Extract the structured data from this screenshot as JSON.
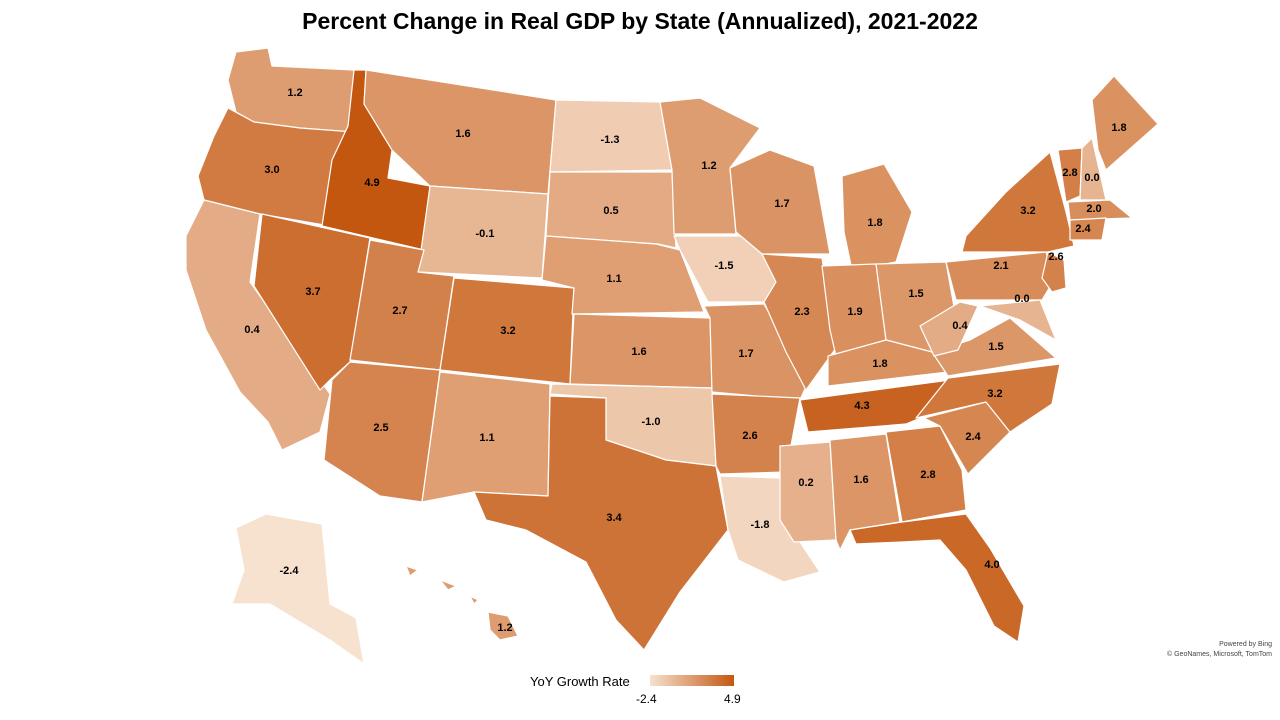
{
  "title": "Percent Change in Real GDP by State (Annualized), 2021-2022",
  "attribution": {
    "line1": "Powered by Bing",
    "line2": "© GeoNames, Microsoft, TomTom"
  },
  "legend": {
    "title": "YoY Growth Rate",
    "min_label": "-2.4",
    "max_label": "4.9",
    "min_color": "#f7e1cf",
    "max_color": "#c45710"
  },
  "map_data": {
    "value_range": [
      -2.4,
      4.9
    ],
    "states": [
      {
        "id": "WA",
        "value": "1.2"
      },
      {
        "id": "OR",
        "value": "3.0"
      },
      {
        "id": "CA",
        "value": "0.4"
      },
      {
        "id": "ID",
        "value": "4.9"
      },
      {
        "id": "NV",
        "value": "3.7"
      },
      {
        "id": "MT",
        "value": "1.6"
      },
      {
        "id": "WY",
        "value": "-0.1"
      },
      {
        "id": "UT",
        "value": "2.7"
      },
      {
        "id": "AZ",
        "value": "2.5"
      },
      {
        "id": "CO",
        "value": "3.2"
      },
      {
        "id": "NM",
        "value": "1.1"
      },
      {
        "id": "ND",
        "value": "-1.3"
      },
      {
        "id": "SD",
        "value": "0.5"
      },
      {
        "id": "NE",
        "value": "1.1"
      },
      {
        "id": "KS",
        "value": "1.6"
      },
      {
        "id": "OK",
        "value": "-1.0"
      },
      {
        "id": "TX",
        "value": "3.4"
      },
      {
        "id": "MN",
        "value": "1.2"
      },
      {
        "id": "IA",
        "value": "-1.5"
      },
      {
        "id": "MO",
        "value": "1.7"
      },
      {
        "id": "AR",
        "value": "2.6"
      },
      {
        "id": "LA",
        "value": "-1.8"
      },
      {
        "id": "WI",
        "value": "1.7"
      },
      {
        "id": "IL",
        "value": "2.3"
      },
      {
        "id": "MI",
        "value": "1.8"
      },
      {
        "id": "IN",
        "value": "1.9"
      },
      {
        "id": "OH",
        "value": "1.5"
      },
      {
        "id": "KY",
        "value": "1.8"
      },
      {
        "id": "TN",
        "value": "4.3"
      },
      {
        "id": "MS",
        "value": "0.2"
      },
      {
        "id": "AL",
        "value": "1.6"
      },
      {
        "id": "GA",
        "value": "2.8"
      },
      {
        "id": "FL",
        "value": "4.0"
      },
      {
        "id": "SC",
        "value": "2.4"
      },
      {
        "id": "NC",
        "value": "3.2"
      },
      {
        "id": "VA",
        "value": "1.5"
      },
      {
        "id": "WV",
        "value": "0.4"
      },
      {
        "id": "PA",
        "value": "2.1"
      },
      {
        "id": "NY",
        "value": "3.2"
      },
      {
        "id": "NJ",
        "value": "2.6"
      },
      {
        "id": "MD",
        "value": "0.0"
      },
      {
        "id": "VT",
        "value": "2.8"
      },
      {
        "id": "NH",
        "value": "0.0"
      },
      {
        "id": "ME",
        "value": "1.8"
      },
      {
        "id": "MA",
        "value": "2.0"
      },
      {
        "id": "CT",
        "value": "2.4"
      },
      {
        "id": "AK",
        "value": "-2.4"
      },
      {
        "id": "HI",
        "value": "1.2"
      }
    ]
  }
}
